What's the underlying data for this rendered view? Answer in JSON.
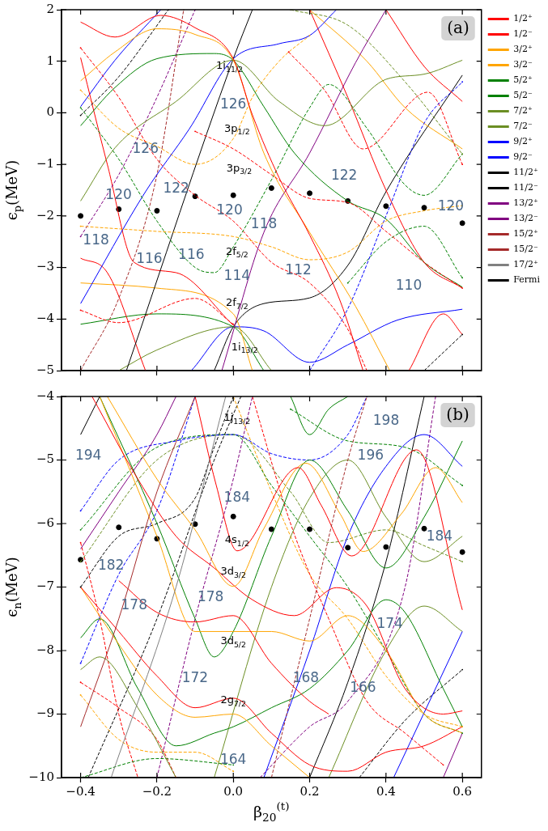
{
  "chart_data": [
    {
      "type": "line",
      "ylabel": "ϵ$_{p}$(MeV)",
      "xlim": [
        -0.45,
        0.65
      ],
      "ylim": [
        -5,
        2
      ],
      "xticks": [
        -0.4,
        -0.2,
        0,
        0.2,
        0.4,
        0.6
      ],
      "yticks": [
        2,
        1,
        0,
        {
          "value": -1,
          "label": "−1"
        },
        {
          "value": -2,
          "label": "−2"
        },
        {
          "value": -3,
          "label": "−3"
        },
        {
          "value": -4,
          "label": "−4"
        },
        {
          "value": -5,
          "label": "−5"
        }
      ],
      "tick_labels": "y",
      "legend": "right",
      "annotations": [
        "(a)",
        "126",
        "126",
        "120",
        "122",
        "120",
        "118",
        "122",
        "120",
        "118",
        "116",
        "116",
        "114",
        "112",
        "110",
        "1i$_{11/2}$",
        "3p$_{1/2}$",
        "3p$_{3/2}$",
        "2f$_{5/2}$",
        "2f$_{7/2}$",
        "1i$_{13/2}$"
      ],
      "series": [
        {
          "name": "1/2⁺",
          "color": "#ff0000",
          "line_style": "solid",
          "x": [
            -0.4,
            -0.31,
            -0.19,
            -0.1,
            0,
            0.05,
            0.12,
            0.2,
            0.28,
            0.34
          ],
          "values": [
            1.76,
            1.47,
            1.89,
            1.65,
            1.05,
            -0.04,
            -1.26,
            -2.37,
            -3.65,
            -5
          ]
        },
        {
          "name": "1/2⁻",
          "color": "#ff0000",
          "line_style": "dashed",
          "x": [
            -0.1,
            0,
            0.1,
            0.2,
            0.3,
            0.4,
            0.5,
            0.6
          ],
          "values": [
            -0.36,
            -0.7,
            -1.2,
            -1.66,
            -1.74,
            -2.3,
            -2.9,
            -3.4
          ]
        },
        {
          "name": "3/2⁺",
          "color": "#ffa500",
          "line_style": "solid",
          "x": [
            -0.4,
            -0.31,
            -0.2,
            -0.1,
            0,
            0.08,
            0.2,
            0.32,
            0.41
          ],
          "values": [
            0.62,
            1.18,
            1.63,
            1.52,
            1.02,
            -0.78,
            -2.32,
            -3.75,
            -5
          ]
        },
        {
          "name": "3/2⁻",
          "color": "#ffa500",
          "line_style": "dashed",
          "x": [
            -0.4,
            -0.2,
            0,
            0.1,
            0.2,
            0.3,
            0.4,
            0.5,
            0.6
          ],
          "values": [
            -2.2,
            -2.3,
            -2.4,
            -2.6,
            -2.85,
            -2.7,
            -2.1,
            -1.9,
            -1.8
          ]
        },
        {
          "name": "5/2⁺",
          "color": "#008000",
          "line_style": "solid",
          "x": [
            -0.4,
            -0.31,
            -0.2,
            -0.05,
            0,
            0.08,
            0.16,
            0.3,
            0.4,
            0.5,
            0.6
          ],
          "values": [
            -0.25,
            0.49,
            1.05,
            1.15,
            1.02,
            0.12,
            -0.78,
            -1.71,
            -2.06,
            -2.9,
            -3.38
          ]
        },
        {
          "name": "5/2⁻",
          "color": "#008000",
          "line_style": "dashed",
          "x": [
            -0.4,
            -0.3,
            -0.2,
            -0.1,
            -0.05,
            0,
            0.1,
            0.2,
            0.25,
            0.35,
            0.45,
            0.5,
            0.6
          ],
          "values": [
            0.1,
            -0.9,
            -2.1,
            -3.0,
            -3.1,
            -2.6,
            -1.3,
            0.1,
            0.55,
            -0.3,
            -1.4,
            -1.6,
            -0.8
          ]
        },
        {
          "name": "7/2⁺",
          "color": "#6b8e23",
          "line_style": "solid",
          "x": [
            -0.4,
            -0.31,
            -0.15,
            0,
            0.12,
            0.24,
            0.4,
            0.5,
            0.6
          ],
          "values": [
            -1.71,
            -0.68,
            0.22,
            1.02,
            0.22,
            -0.25,
            0.65,
            0.75,
            1.02
          ]
        },
        {
          "name": "7/2⁻",
          "color": "#6b8e23",
          "line_style": "dashed",
          "x": [
            0.15,
            0.3,
            0.45,
            0.6
          ],
          "values": [
            2,
            1.7,
            0.6,
            -0.8
          ]
        },
        {
          "name": "9/2⁺",
          "color": "#0000ff",
          "line_style": "solid",
          "x": [
            -0.4,
            -0.23,
            -0.115,
            0,
            0.12,
            0.2,
            0.27
          ],
          "values": [
            -3.7,
            -1.53,
            -0.31,
            1.05,
            1.34,
            1.5,
            2
          ]
        },
        {
          "name": "9/2⁻",
          "color": "#0000ff",
          "line_style": "dashed",
          "x": [
            0.2,
            0.3,
            0.4,
            0.5,
            0.6
          ],
          "values": [
            -5,
            -3.8,
            -2.0,
            -0.2,
            0.6
          ]
        },
        {
          "name": "11/2⁺",
          "color": "#000000",
          "line_style": "solid",
          "x": [
            -0.28,
            0,
            0.05
          ],
          "values": [
            -5,
            1.05,
            2
          ]
        },
        {
          "name": "11/2⁻",
          "color": "#000000",
          "line_style": "dashed",
          "x": [
            -0.4,
            -0.3,
            -0.17
          ],
          "values": [
            -0.05,
            0.7,
            2
          ]
        },
        {
          "name": "13/2⁺",
          "color": "#800080",
          "line_style": "solid",
          "x": [
            -0.03,
            0.08,
            0.2,
            0.32,
            0.4
          ],
          "values": [
            -5,
            -2.32,
            -0.78,
            0.97,
            2
          ]
        },
        {
          "name": "13/2⁻",
          "color": "#800080",
          "line_style": "dashed",
          "x": [
            -0.4,
            -0.3,
            -0.2,
            -0.1
          ],
          "values": [
            -2.4,
            -1.2,
            0.3,
            2.0
          ]
        },
        {
          "color": "#a52a2a",
          "line_style": "dashed",
          "x": [
            -0.4,
            -0.3,
            -0.2,
            -0.13
          ],
          "values": [
            -5,
            -3.6,
            -1.2,
            2
          ]
        },
        {
          "color": "#ff0000",
          "line_style": "solid",
          "x": [
            -0.4,
            -0.33,
            -0.26,
            -0.15,
            0
          ],
          "values": [
            1.07,
            -1.0,
            -2.9,
            -3.1,
            -4.12
          ]
        },
        {
          "color": "#ff0000",
          "line_style": "solid",
          "x": [
            -0.4,
            -0.33,
            -0.23
          ],
          "values": [
            -2.82,
            -3.1,
            -5
          ]
        },
        {
          "color": "#ff0000",
          "line_style": "solid",
          "x": [
            0.4,
            0.5,
            0.6
          ],
          "values": [
            2,
            0.9,
            0.22
          ]
        },
        {
          "color": "#ff0000",
          "line_style": "solid",
          "x": [
            0.2,
            0.3,
            0.4,
            0.5,
            0.6
          ],
          "values": [
            2,
            0.3,
            -1.5,
            -2.9,
            -3.4
          ]
        },
        {
          "color": "#ff0000",
          "line_style": "solid",
          "x": [
            0.46,
            0.55,
            0.6
          ],
          "values": [
            -5,
            -3.9,
            -4.3
          ]
        },
        {
          "color": "#ff0000",
          "line_style": "dashed",
          "x": [
            -0.4,
            -0.3,
            -0.2,
            -0.1,
            0,
            0.1,
            0.2,
            0.3,
            0.35
          ],
          "values": [
            1.26,
            0.3,
            -0.9,
            -1.6,
            -2.1,
            -2.9,
            -3.3,
            -4.2,
            -5
          ]
        },
        {
          "color": "#ff0000",
          "line_style": "dashed",
          "x": [
            0.145,
            0.24,
            0.34,
            0.51,
            0.6
          ],
          "values": [
            1.18,
            0.43,
            -0.7,
            0.4,
            -1.0
          ]
        },
        {
          "color": "#ff0000",
          "line_style": "dashed",
          "x": [
            -0.4,
            -0.3,
            -0.1,
            0
          ],
          "values": [
            -3.83,
            -4.07,
            -3.6,
            -4.1
          ]
        },
        {
          "color": "#ffa500",
          "line_style": "dashed",
          "x": [
            -0.4,
            -0.3,
            -0.2,
            -0.1,
            0,
            0.05,
            0.12,
            0.2
          ],
          "values": [
            0.44,
            -0.3,
            -0.65,
            -1.0,
            -0.5,
            0.3,
            1.0,
            1.5
          ]
        },
        {
          "color": "#ffa500",
          "line_style": "solid",
          "x": [
            -0.4,
            -0.2,
            0,
            0.05
          ],
          "values": [
            -3.3,
            -3.4,
            -3.9,
            -5
          ]
        },
        {
          "color": "#ffa500",
          "line_style": "solid",
          "x": [
            0.2,
            0.35,
            0.45,
            0.6
          ],
          "values": [
            2,
            1.0,
            0.1,
            -0.7
          ]
        },
        {
          "color": "#008000",
          "line_style": "solid",
          "x": [
            -0.4,
            -0.2,
            0,
            0.08
          ],
          "values": [
            -4.1,
            -3.9,
            -4.15,
            -5
          ]
        },
        {
          "color": "#008000",
          "line_style": "dashed",
          "x": [
            0.3,
            0.4,
            0.5,
            0.6
          ],
          "values": [
            -3.3,
            -2.5,
            -2.2,
            -3.2
          ]
        },
        {
          "color": "#6b8e23",
          "line_style": "solid",
          "x": [
            -0.3,
            -0.2,
            0,
            0.1
          ],
          "values": [
            -5,
            -4.6,
            -4.15,
            -5
          ]
        },
        {
          "color": "#0000ff",
          "line_style": "solid",
          "x": [
            -0.4,
            -0.31,
            -0.19
          ],
          "values": [
            0.12,
            1.02,
            2
          ]
        },
        {
          "color": "#0000ff",
          "line_style": "solid",
          "x": [
            -0.11,
            0,
            0.08,
            0.2,
            0.3,
            0.43,
            0.6
          ],
          "values": [
            -5,
            -4.15,
            -4.23,
            -4.84,
            -4.5,
            -4.02,
            -3.81
          ]
        },
        {
          "color": "#000000",
          "line_style": "solid",
          "x": [
            -0.05,
            0,
            0.08,
            0.2,
            0.3,
            0.4,
            0.6
          ],
          "values": [
            -5,
            -4.15,
            -3.7,
            -3.59,
            -2.96,
            -1.53,
            0.73
          ]
        },
        {
          "color": "#000000",
          "line_style": "dashed",
          "x": [
            0.5,
            0.6
          ],
          "values": [
            -5,
            -4.3
          ]
        },
        {
          "type": "scatter",
          "marker": "circle",
          "color": "#000000",
          "x": [
            -0.4,
            -0.3,
            -0.2,
            -0.1,
            0,
            0.1,
            0.2,
            0.3,
            0.4,
            0.5,
            0.6
          ],
          "values": [
            -2.0,
            -1.87,
            -1.9,
            -1.62,
            -1.6,
            -1.46,
            -1.56,
            -1.71,
            -1.81,
            -1.84,
            -2.14
          ]
        }
      ]
    },
    {
      "type": "line",
      "xlabel": "β$_{20}$$^{(t)}$",
      "ylabel": "ϵ$_{n}$(MeV)",
      "xlim": [
        -0.45,
        0.65
      ],
      "ylim": [
        -10,
        -4
      ],
      "xticks": [
        {
          "value": -0.4,
          "label": "−0.4"
        },
        {
          "value": -0.2,
          "label": "−0.2"
        },
        {
          "value": 0,
          "label": "0.0"
        },
        {
          "value": 0.2,
          "label": "0.2"
        },
        {
          "value": 0.4,
          "label": "0.4"
        },
        {
          "value": 0.6,
          "label": "0.6"
        }
      ],
      "yticks": [
        {
          "value": -4,
          "label": "−4"
        },
        {
          "value": -5,
          "label": "−5"
        },
        {
          "value": -6,
          "label": "−6"
        },
        {
          "value": -7,
          "label": "−7"
        },
        {
          "value": -8,
          "label": "−8"
        },
        {
          "value": -9,
          "label": "−9"
        },
        {
          "value": -10,
          "label": "−10"
        }
      ],
      "annotations": [
        "(b)",
        "194",
        "198",
        "196",
        "184",
        "184",
        "182",
        "178",
        "178",
        "174",
        "172",
        "168",
        "166",
        "164",
        "1j$_{13/2}$",
        "4s$_{1/2}$",
        "3d$_{3/2}$",
        "3d$_{5/2}$",
        "2g$_{7/2}$"
      ],
      "series": [
        {
          "name": "15/2⁺",
          "color": "#a52a2a",
          "line_style": "solid",
          "x": [
            -0.4,
            -0.3,
            -0.2,
            -0.1
          ],
          "values": [
            -9.2,
            -7.5,
            -5.5,
            -4.0
          ]
        },
        {
          "name": "15/2⁻",
          "color": "#a52a2a",
          "line_style": "dashed",
          "x": [
            0.1,
            0.2,
            0.3,
            0.35
          ],
          "values": [
            -10,
            -7.5,
            -5.0,
            -4.0
          ]
        },
        {
          "name": "17/2⁺",
          "color": "#808080",
          "line_style": "solid",
          "x": [
            -0.32,
            -0.15,
            -0.02
          ],
          "values": [
            -10,
            -7,
            -4.0
          ]
        },
        {
          "color": "#ff0000",
          "line_style": "solid",
          "x": [
            -0.1,
            -0.045,
            0.01,
            0.17,
            0.23,
            0.31,
            0.48,
            0.6
          ],
          "values": [
            -4,
            -5.39,
            -6.43,
            -5.12,
            -5.71,
            -6.51,
            -4.84,
            -7.36
          ]
        },
        {
          "color": "#ffa500",
          "line_style": "solid",
          "x": [
            -0.33,
            -0.2,
            -0.1,
            0,
            0.08,
            0.19,
            0.28,
            0.34,
            0.44,
            0.53,
            0.6
          ],
          "values": [
            -4,
            -5.3,
            -6.1,
            -6.99,
            -6.08,
            -5.05,
            -5.85,
            -6.44,
            -5.85,
            -5.12,
            -5.67
          ]
        },
        {
          "color": "#ff0000",
          "line_style": "solid",
          "x": [
            -0.37,
            -0.25,
            -0.15,
            -0.05,
            0.05,
            0.16,
            0.27,
            0.35,
            0.45,
            0.55,
            0.6
          ],
          "values": [
            -4,
            -5.3,
            -6.2,
            -6.7,
            -7.2,
            -7.45,
            -7.01,
            -7.3,
            -8.6,
            -9.0,
            -8.95
          ]
        },
        {
          "color": "#ff0000",
          "line_style": "solid",
          "x": [
            -0.4,
            -0.3,
            -0.2,
            -0.1,
            0,
            0.1,
            0.2,
            0.3,
            0.4,
            0.5,
            0.6
          ],
          "values": [
            -7.0,
            -7.7,
            -8.4,
            -8.9,
            -8.75,
            -9.3,
            -9.8,
            -9.9,
            -9.6,
            -9.5,
            -9.2
          ]
        },
        {
          "color": "#ff0000",
          "line_style": "solid",
          "x": [
            -0.3,
            -0.2,
            -0.1,
            0,
            0.1,
            0.2,
            0.25
          ],
          "values": [
            -6.9,
            -7.4,
            -7.55,
            -7.45,
            -8.2,
            -8.8,
            -9.0
          ]
        },
        {
          "color": "#ffa500",
          "line_style": "solid",
          "x": [
            -0.4,
            -0.3,
            -0.2,
            -0.1,
            0,
            0.1,
            0.2
          ],
          "values": [
            -7.0,
            -7.9,
            -8.7,
            -9.05,
            -9.0,
            -9.5,
            -10
          ]
        },
        {
          "color": "#ffa500",
          "line_style": "solid",
          "x": [
            -0.35,
            -0.2,
            -0.1,
            0,
            0.1,
            0.2,
            0.3,
            0.4,
            0.5,
            0.6
          ],
          "values": [
            -4,
            -6.2,
            -7.7,
            -7.7,
            -7.7,
            -7.85,
            -7.45,
            -8.0,
            -9.0,
            -9.3
          ]
        },
        {
          "color": "#008000",
          "line_style": "solid",
          "x": [
            -0.35,
            -0.2,
            -0.1,
            -0.05,
            0,
            0.1,
            0.2,
            0.3,
            0.4,
            0.5,
            0.6
          ],
          "values": [
            -4,
            -6.0,
            -7.5,
            -8.1,
            -7.7,
            -6.2,
            -5.0,
            -5.8,
            -6.7,
            -5.9,
            -4.7
          ]
        },
        {
          "color": "#008000",
          "line_style": "solid",
          "x": [
            -0.4,
            -0.35,
            -0.25,
            -0.15,
            -0.05,
            0,
            0.1,
            0.2,
            0.3,
            0.4,
            0.45,
            0.55,
            0.6
          ],
          "values": [
            -7.8,
            -7.5,
            -8.6,
            -9.5,
            -9.3,
            -9.2,
            -8.9,
            -8.6,
            -8.0,
            -7.2,
            -7.4,
            -8.6,
            -9.2
          ]
        },
        {
          "color": "#008000",
          "line_style": "solid",
          "x": [
            0.15,
            0.2,
            0.25,
            0.3
          ],
          "values": [
            -4,
            -4.6,
            -4.2,
            -4
          ]
        },
        {
          "color": "#6b8e23",
          "line_style": "solid",
          "x": [
            -0.4,
            -0.35,
            -0.25,
            -0.15
          ],
          "values": [
            -8.3,
            -8.1,
            -8.9,
            -10
          ]
        },
        {
          "color": "#6b8e23",
          "line_style": "solid",
          "x": [
            -0.05,
            0.1,
            0.2,
            0.3,
            0.4,
            0.5,
            0.6
          ],
          "values": [
            -10,
            -7.0,
            -5.6,
            -5.0,
            -5.9,
            -6.6,
            -6.2
          ]
        },
        {
          "color": "#6b8e23",
          "line_style": "solid",
          "x": [
            0.25,
            0.4,
            0.5,
            0.6
          ],
          "values": [
            -10,
            -8.0,
            -7.3,
            -7.7
          ]
        },
        {
          "color": "#0000ff",
          "line_style": "solid",
          "x": [
            0.08,
            0.2,
            0.3,
            0.4,
            0.5,
            0.6
          ],
          "values": [
            -10,
            -8.0,
            -6.2,
            -5.1,
            -4.6,
            -5.1
          ]
        },
        {
          "color": "#0000ff",
          "line_style": "solid",
          "x": [
            0.42,
            0.6
          ],
          "values": [
            -10,
            -7.7
          ]
        },
        {
          "color": "#000000",
          "line_style": "solid",
          "x": [
            0.2,
            0.3,
            0.4,
            0.5
          ],
          "values": [
            -10,
            -8.5,
            -6.6,
            -4.0
          ]
        },
        {
          "color": "#000000",
          "line_style": "solid",
          "x": [
            -0.4,
            -0.35
          ],
          "values": [
            -4.6,
            -4
          ]
        },
        {
          "color": "#800080",
          "line_style": "solid",
          "x": [
            -0.4,
            -0.3,
            -0.2,
            -0.15
          ],
          "values": [
            -6.4,
            -5.5,
            -4.6,
            -4.0
          ]
        },
        {
          "color": "#800080",
          "line_style": "solid",
          "x": [
            0.55,
            0.6
          ],
          "values": [
            -10,
            -9.3
          ]
        },
        {
          "color": "#0000ff",
          "line_style": "dashed",
          "x": [
            -0.4,
            -0.3,
            -0.15,
            0,
            0.1,
            0.2,
            0.3,
            0.35
          ],
          "values": [
            -5.8,
            -5.0,
            -4.7,
            -4.6,
            -4.9,
            -5.0,
            -4.6,
            -4.0
          ]
        },
        {
          "color": "#0000ff",
          "line_style": "dashed",
          "x": [
            -0.4,
            -0.3,
            -0.2,
            -0.1
          ],
          "values": [
            -8.2,
            -6.8,
            -5.8,
            -4.0
          ]
        },
        {
          "color": "#008000",
          "line_style": "dashed",
          "x": [
            -0.4,
            -0.2,
            0,
            0.1,
            0.2,
            0.3,
            0.4,
            0.5,
            0.6
          ],
          "values": [
            -6.1,
            -4.8,
            -4.6,
            -5.4,
            -6.2,
            -7.0,
            -8.0,
            -9.0,
            -9.3
          ]
        },
        {
          "color": "#008000",
          "line_style": "dashed",
          "x": [
            0.15,
            0.3,
            0.45,
            0.6
          ],
          "values": [
            -4.2,
            -4.7,
            -4.8,
            -5.4
          ]
        },
        {
          "color": "#008000",
          "line_style": "dashed",
          "x": [
            -0.4,
            -0.2,
            0
          ],
          "values": [
            -10,
            -9.7,
            -9.8
          ]
        },
        {
          "color": "#6b8e23",
          "line_style": "dashed",
          "x": [
            -0.4,
            -0.2,
            0,
            0.15,
            0.25,
            0.4,
            0.5,
            0.6
          ],
          "values": [
            -6.6,
            -5.0,
            -4.6,
            -5.5,
            -6.3,
            -6.1,
            -6.35,
            -6.6
          ]
        },
        {
          "color": "#ff0000",
          "line_style": "dashed",
          "x": [
            -0.4,
            -0.3,
            -0.2,
            -0.15
          ],
          "values": [
            -8.5,
            -8.9,
            -9.4,
            -10
          ]
        },
        {
          "color": "#ff0000",
          "line_style": "dashed",
          "x": [
            0.05,
            0.15,
            0.25,
            0.35,
            0.45,
            0.55
          ],
          "values": [
            -4.0,
            -6.0,
            -7.5,
            -8.8,
            -9.3,
            -9.8
          ]
        },
        {
          "color": "#ff0000",
          "line_style": "dashed",
          "x": [
            -0.4,
            -0.35,
            -0.3,
            -0.25
          ],
          "values": [
            -6.3,
            -7.5,
            -9.0,
            -10
          ]
        },
        {
          "color": "#ffa500",
          "line_style": "dashed",
          "x": [
            -0.4,
            -0.3,
            -0.2,
            -0.1,
            0
          ],
          "values": [
            -8.7,
            -9.4,
            -9.6,
            -9.6,
            -9.9
          ]
        },
        {
          "color": "#ffa500",
          "line_style": "dashed",
          "x": [
            0,
            0.1,
            0.2,
            0.3,
            0.4,
            0.5,
            0.6
          ],
          "values": [
            -4.0,
            -5.5,
            -6.8,
            -7.5,
            -8.4,
            -9.0,
            -9.2
          ]
        },
        {
          "color": "#000000",
          "line_style": "dashed",
          "x": [
            -0.4,
            -0.3,
            -0.2,
            -0.1,
            -0.05,
            0
          ],
          "values": [
            -7.0,
            -6.2,
            -6.0,
            -5.6,
            -4.8,
            -4.0
          ]
        },
        {
          "color": "#000000",
          "line_style": "dashed",
          "x": [
            -0.38,
            -0.2,
            -0.05,
            0.02
          ],
          "values": [
            -10,
            -7.5,
            -5.0,
            -4.0
          ]
        },
        {
          "color": "#000000",
          "line_style": "dashed",
          "x": [
            0.33,
            0.45,
            0.6
          ],
          "values": [
            -10,
            -9.1,
            -8.3
          ]
        },
        {
          "color": "#800080",
          "line_style": "dashed",
          "x": [
            -0.2,
            -0.1,
            0,
            0.05
          ],
          "values": [
            -10,
            -7.5,
            -5.3,
            -4.0
          ]
        },
        {
          "color": "#800080",
          "line_style": "dashed",
          "x": [
            0.07,
            0.2,
            0.3,
            0.45,
            0.53
          ],
          "values": [
            -10,
            -9.2,
            -8.8,
            -7.0,
            -4.0
          ]
        },
        {
          "name": "Fermi",
          "type": "scatter",
          "marker": "circle",
          "color": "#000000",
          "x": [
            -0.4,
            -0.3,
            -0.2,
            -0.1,
            0,
            0.1,
            0.2,
            0.3,
            0.4,
            0.5,
            0.6
          ],
          "values": [
            -6.57,
            -6.06,
            -6.24,
            -6.01,
            -5.89,
            -6.09,
            -6.09,
            -6.38,
            -6.37,
            -6.08,
            -6.45
          ]
        }
      ]
    }
  ]
}
